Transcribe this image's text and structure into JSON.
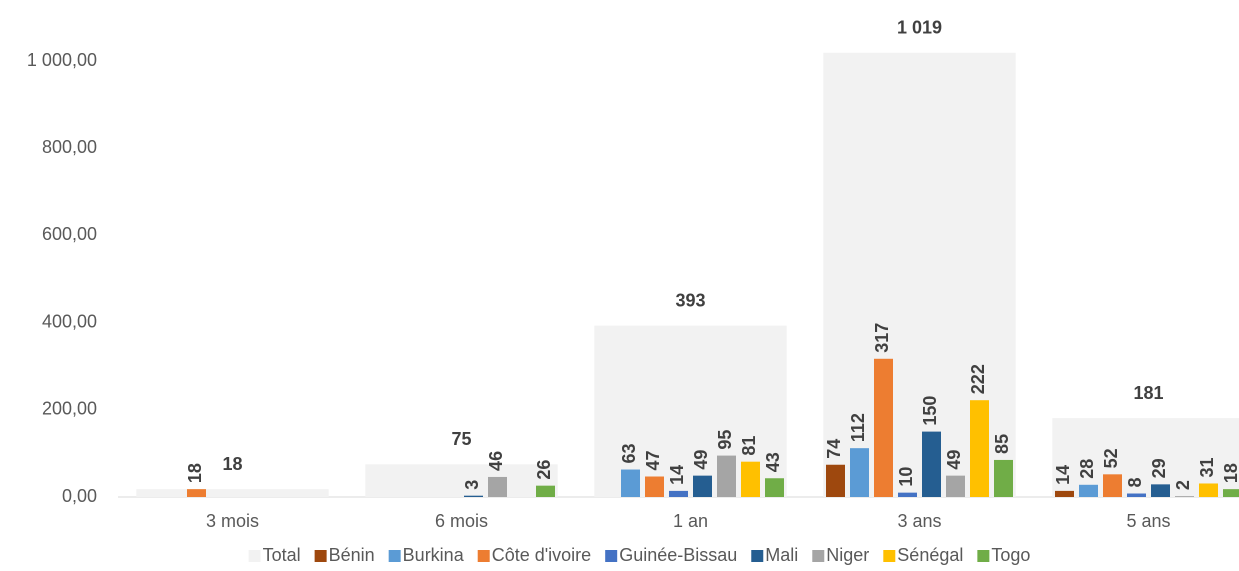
{
  "chart_data": {
    "type": "bar",
    "categories": [
      "3 mois",
      "6 mois",
      "1 an",
      "3 ans",
      "5 ans"
    ],
    "series": [
      {
        "name": "Total",
        "color": "#f2f2f2",
        "values": [
          18,
          75,
          393,
          1019,
          181
        ],
        "value_labels": [
          "18",
          "75",
          "393",
          "1 019",
          "181"
        ]
      },
      {
        "name": "Bénin",
        "color": "#9e480e",
        "values": [
          null,
          null,
          null,
          74,
          14
        ]
      },
      {
        "name": "Burkina",
        "color": "#5b9bd5",
        "values": [
          null,
          null,
          63,
          112,
          28
        ]
      },
      {
        "name": "Côte d'ivoire",
        "color": "#ed7d31",
        "values": [
          18,
          null,
          47,
          317,
          52
        ]
      },
      {
        "name": "Guinée-Bissau",
        "color": "#4472c4",
        "values": [
          null,
          null,
          14,
          10,
          8
        ]
      },
      {
        "name": "Mali",
        "color": "#255e91",
        "values": [
          null,
          3,
          49,
          150,
          29
        ]
      },
      {
        "name": "Niger",
        "color": "#a5a5a5",
        "values": [
          null,
          46,
          95,
          49,
          2
        ]
      },
      {
        "name": "Sénégal",
        "color": "#ffc000",
        "values": [
          null,
          null,
          81,
          222,
          31
        ]
      },
      {
        "name": "Togo",
        "color": "#70ad47",
        "values": [
          null,
          26,
          43,
          85,
          18
        ]
      }
    ],
    "ylim": [
      0,
      1050
    ],
    "yticks": [
      {
        "value": 0,
        "label": "0,00"
      },
      {
        "value": 200,
        "label": "200,00"
      },
      {
        "value": 400,
        "label": "400,00"
      },
      {
        "value": 600,
        "label": "600,00"
      },
      {
        "value": 800,
        "label": "800,00"
      },
      {
        "value": 1000,
        "label": "1 000,00"
      }
    ],
    "grid": false,
    "legend": "bottom"
  }
}
